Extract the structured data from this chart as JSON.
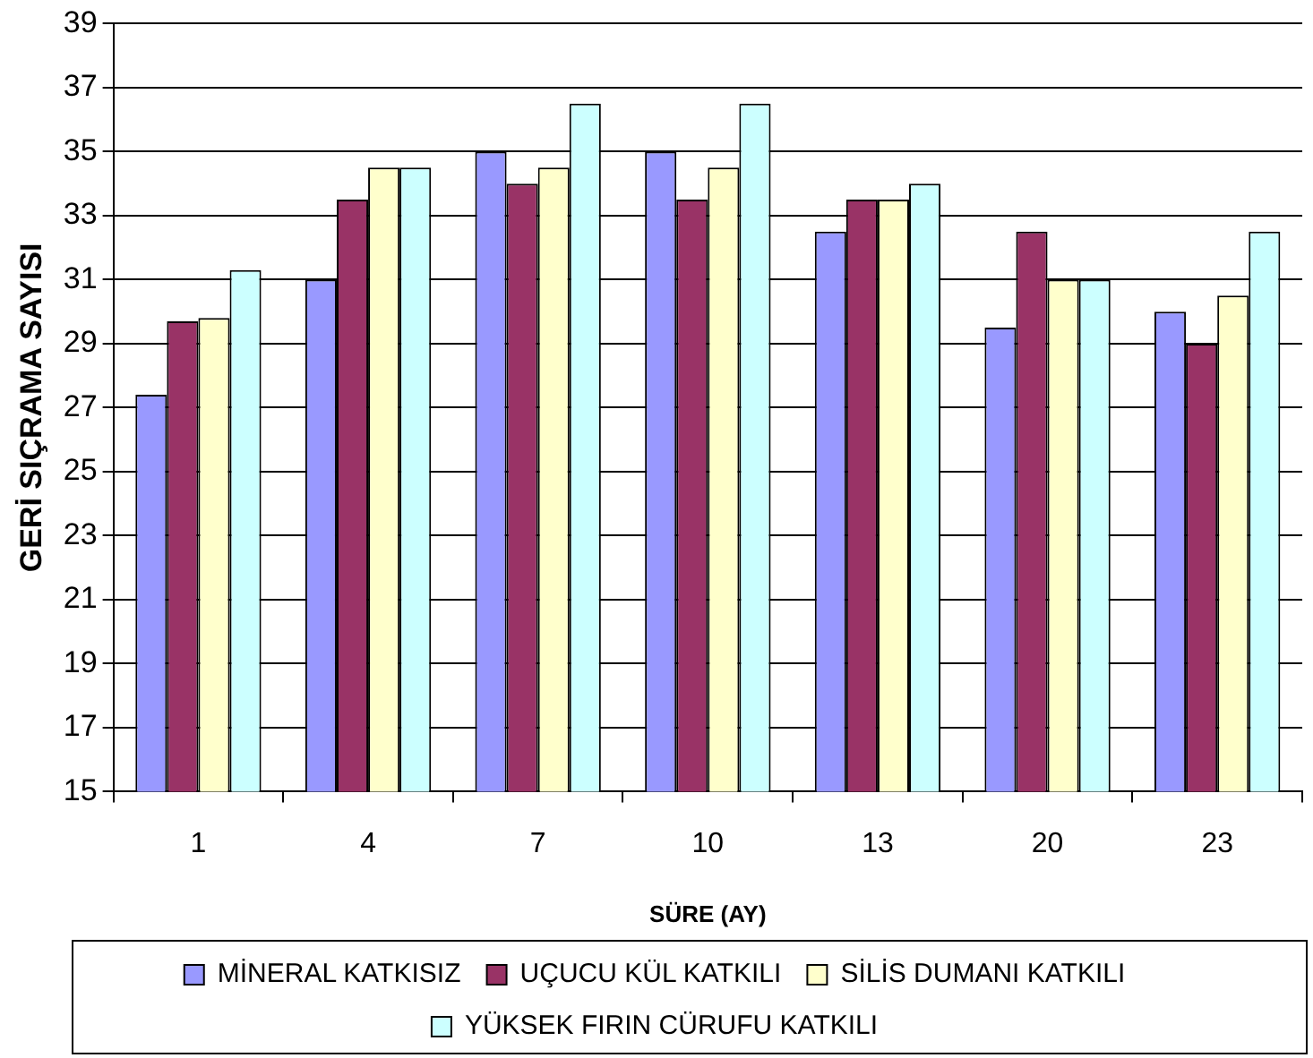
{
  "chart_data": {
    "type": "bar",
    "xlabel": "SÜRE (AY)",
    "ylabel": "GERİ SIÇRAMA SAYISI",
    "categories": [
      "1",
      "4",
      "7",
      "10",
      "13",
      "20",
      "23"
    ],
    "series": [
      {
        "name": "MİNERAL KATKISIZ",
        "color": "#9999ff",
        "values": [
          27.4,
          31,
          35,
          35,
          32.5,
          29.5,
          30
        ]
      },
      {
        "name": "UÇUCU KÜL KATKILI",
        "color": "#993366",
        "values": [
          29.7,
          33.5,
          34,
          33.5,
          33.5,
          32.5,
          29
        ]
      },
      {
        "name": "SİLİS DUMANI KATKILI",
        "color": "#ffffcc",
        "values": [
          29.8,
          34.5,
          34.5,
          34.5,
          33.5,
          31,
          30.5
        ]
      },
      {
        "name": "YÜKSEK FIRIN CÜRUFU KATKILI",
        "color": "#ccffff",
        "values": [
          31.3,
          34.5,
          36.5,
          36.5,
          34,
          31,
          32.5
        ]
      }
    ],
    "ylim": [
      15,
      39
    ],
    "yticks": [
      15,
      17,
      19,
      21,
      23,
      25,
      27,
      29,
      31,
      33,
      35,
      37,
      39
    ],
    "grid": "y",
    "legend": "bottom"
  }
}
